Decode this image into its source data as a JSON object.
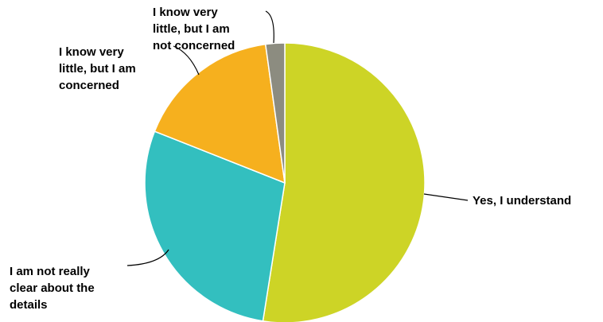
{
  "chart_data": {
    "type": "pie",
    "title": "",
    "start_angle_deg": 90,
    "direction": "clockwise",
    "slices": [
      {
        "label": "Yes, I understand",
        "value": 52.5,
        "color": "#cdd426"
      },
      {
        "label": "I am not really clear about the details",
        "value": 28.5,
        "color": "#33bfbf"
      },
      {
        "label": "I know very little, but I am concerned",
        "value": 16.8,
        "color": "#f6b01e"
      },
      {
        "label": "I know very little, but I am not concerned",
        "value": 2.2,
        "color": "#8c8c80"
      }
    ],
    "legend": "none"
  }
}
